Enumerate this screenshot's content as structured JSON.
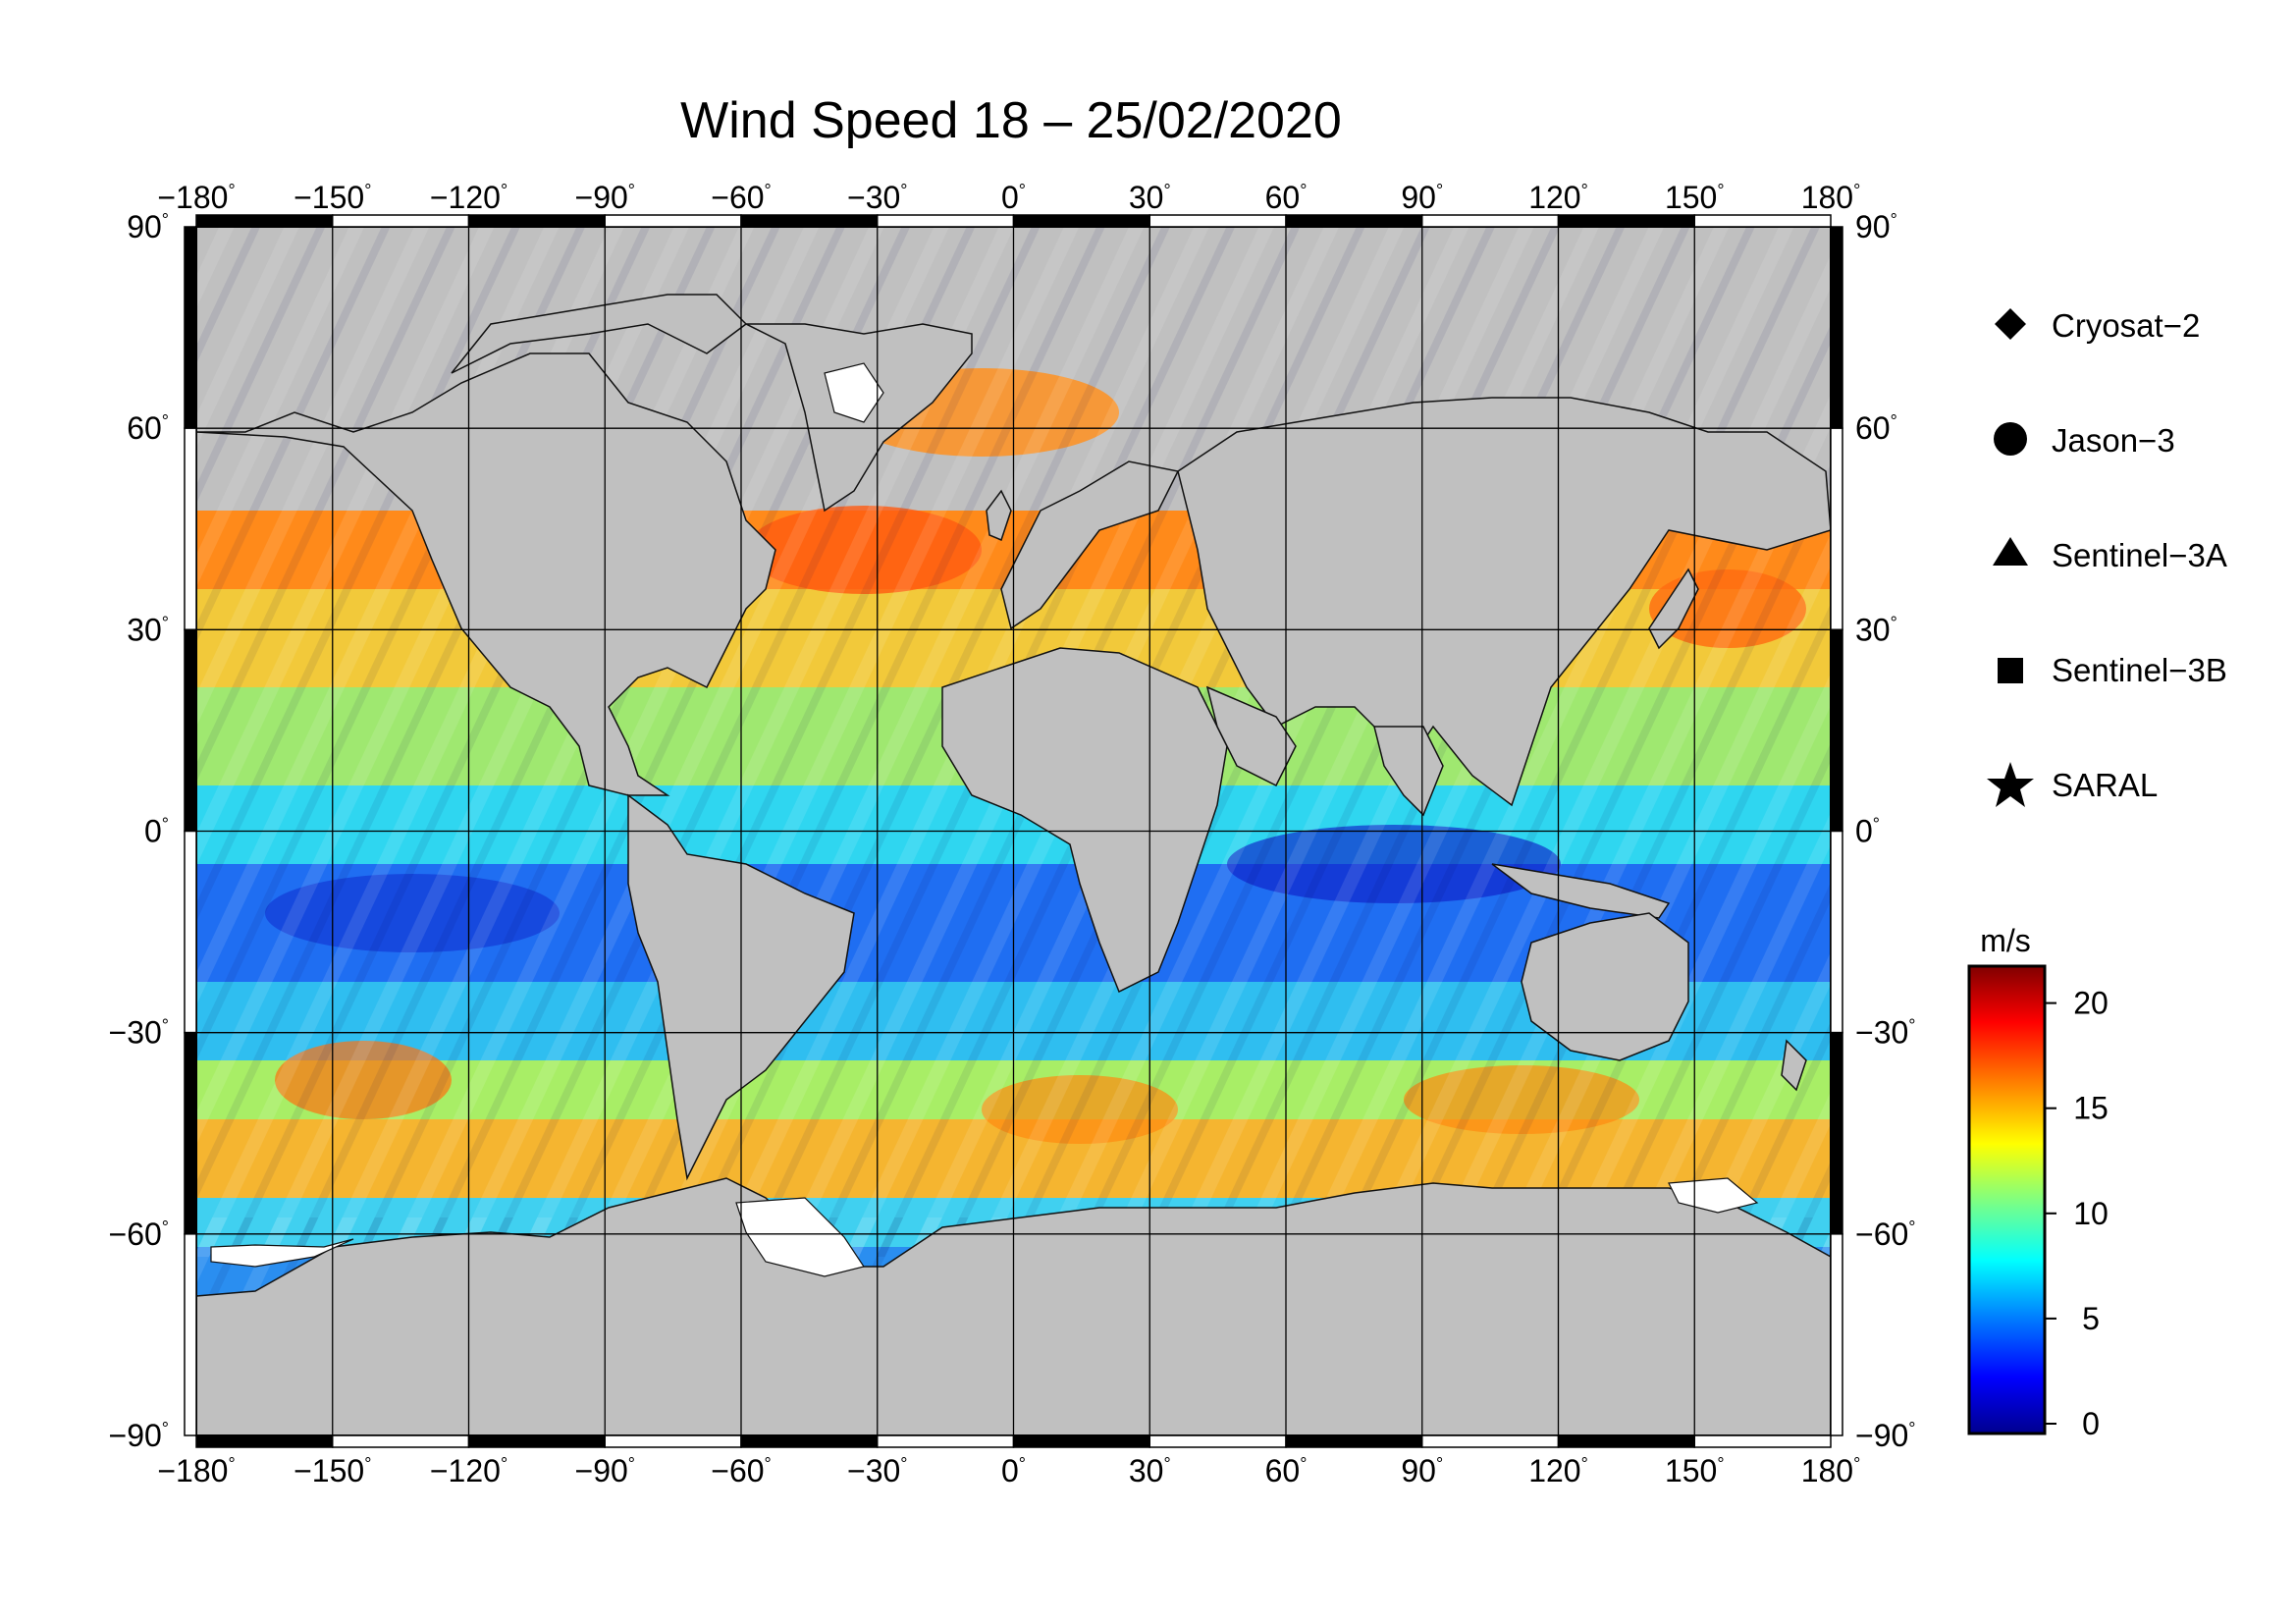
{
  "title": "Wind Speed 18 – 25/02/2020",
  "degree_symbol": "°",
  "lon_ticks": [
    "−180",
    "−150",
    "−120",
    "−90",
    "−60",
    "−30",
    "0",
    "30",
    "60",
    "90",
    "120",
    "150",
    "180"
  ],
  "lat_ticks": [
    "90",
    "60",
    "30",
    "0",
    "−30",
    "−60",
    "−90"
  ],
  "lon_values": [
    -180,
    -150,
    -120,
    -90,
    -60,
    -30,
    0,
    30,
    60,
    90,
    120,
    150,
    180
  ],
  "lat_values": [
    90,
    60,
    30,
    0,
    -30,
    -60,
    -90
  ],
  "legend": [
    {
      "label": "Cryosat−2",
      "symbol": "diamond"
    },
    {
      "label": "Jason−3",
      "symbol": "circle"
    },
    {
      "label": "Sentinel−3A",
      "symbol": "triangle"
    },
    {
      "label": "Sentinel−3B",
      "symbol": "square"
    },
    {
      "label": "SARAL",
      "symbol": "star"
    }
  ],
  "colorbar": {
    "unit": "m/s",
    "ticks": [
      "20",
      "15",
      "10",
      "5",
      "0"
    ],
    "min": 0,
    "max": 20,
    "colors": [
      "#00008f",
      "#0000ff",
      "#0080ff",
      "#00ffff",
      "#80ff80",
      "#ffff00",
      "#ff8000",
      "#ff0000",
      "#800000"
    ]
  },
  "map": {
    "land_color": "#c0c0c0",
    "ice_color": "#ffffff"
  }
}
